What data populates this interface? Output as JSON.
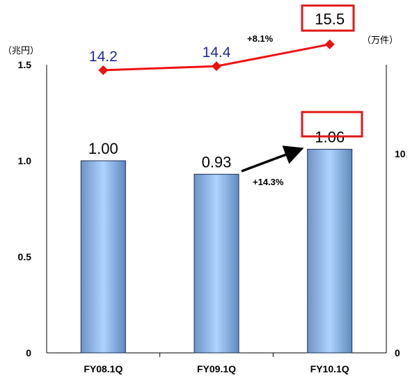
{
  "chart_data": {
    "type": "bar",
    "categories": [
      "FY08.1Q",
      "FY09.1Q",
      "FY10.1Q"
    ],
    "left_axis": {
      "unit": "（兆円）",
      "ticks": [
        "0",
        "0.5",
        "1.0",
        "1.5"
      ],
      "ylim": [
        0,
        1.5
      ]
    },
    "right_axis": {
      "unit": "（万件）",
      "ticks": [
        "0",
        "10"
      ]
    },
    "series": [
      {
        "kind": "bar",
        "axis": "left",
        "values": [
          1.0,
          0.93,
          1.06
        ],
        "labels": [
          "1.00",
          "0.93",
          "1.06"
        ]
      },
      {
        "kind": "line",
        "axis": "right",
        "values": [
          14.2,
          14.4,
          15.5
        ],
        "labels": [
          "14.2",
          "14.4",
          "15.5"
        ]
      }
    ],
    "annotations": {
      "bar_growth": "+14.3%",
      "line_growth": "+8.1%"
    },
    "colors": {
      "bar": "#7aa8dc",
      "line": "#ee1111",
      "line_labels": "#1f2a99",
      "highlight_box": "#e01818"
    }
  }
}
